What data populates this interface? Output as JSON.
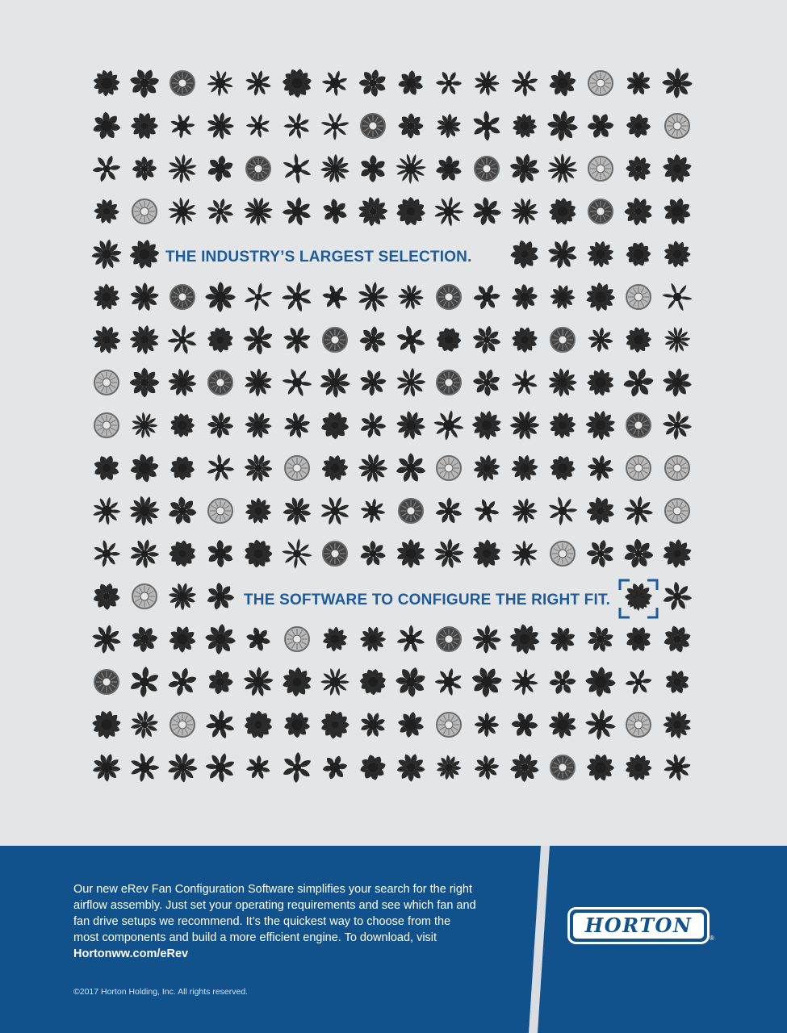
{
  "headline_1": "THE INDUSTRY’S LARGEST SELECTION.",
  "headline_2": "THE SOFTWARE TO CONFIGURE THE RIGHT FIT.",
  "body_text": "Our new eRev Fan Configuration Software simplifies your search for the right airflow assembly. Just set your operating requirements and see which fan and fan drive setups we recommend. It’s the quickest way to choose from the most components and build a more efficient engine. To download, visit",
  "body_url": "Hortonww.com/eRev",
  "copyright": "©2017 Horton Holding, Inc. All rights reserved.",
  "logo": {
    "text": "HORTON",
    "registered": "®"
  },
  "colors": {
    "background": "#e4e5e6",
    "brand_blue": "#11518c",
    "headline_blue": "#1d5b9a",
    "fan_dark": "#2b2b2b",
    "clutch_light": "#b9b9b9"
  },
  "icons": {
    "fan": "fan-icon",
    "clutch": "fan-clutch-icon",
    "selection": "viewfinder-fan-icon"
  }
}
